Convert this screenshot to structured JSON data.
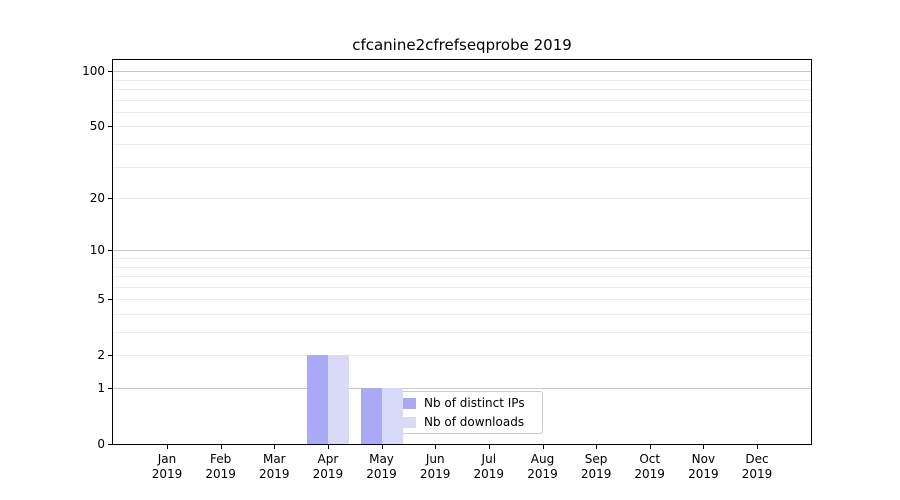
{
  "chart_data": {
    "type": "bar",
    "title": "cfcanine2cfrefseqprobe 2019",
    "categories": [
      "Jan",
      "Feb",
      "Mar",
      "Apr",
      "May",
      "Jun",
      "Jul",
      "Aug",
      "Sep",
      "Oct",
      "Nov",
      "Dec"
    ],
    "x_year_label": "2019",
    "series": [
      {
        "name": "Nb of distinct IPs",
        "color": "#a9a9f5",
        "values": [
          0,
          0,
          0,
          2,
          1,
          0,
          0,
          0,
          0,
          0,
          0,
          0
        ]
      },
      {
        "name": "Nb of downloads",
        "color": "#d9d9f8",
        "values": [
          0,
          0,
          0,
          2,
          1,
          0,
          0,
          0,
          0,
          0,
          0,
          0
        ]
      }
    ],
    "y_axis": {
      "scale": "log1p",
      "ticks": [
        0,
        1,
        2,
        5,
        10,
        20,
        50,
        100
      ],
      "min": 0,
      "max": 115,
      "major_gridlines": [
        1,
        10,
        100
      ],
      "minor_gridlines": [
        2,
        3,
        4,
        5,
        6,
        7,
        8,
        9,
        20,
        30,
        40,
        50,
        60,
        70,
        80,
        90
      ]
    },
    "legend": {
      "position": "lower-center",
      "items": [
        "Nb of distinct IPs",
        "Nb of downloads"
      ]
    },
    "colors": {
      "background": "#ffffff",
      "axis": "#000000",
      "grid_major": "#c6c6c6",
      "grid_minor": "#ebebeb"
    }
  }
}
